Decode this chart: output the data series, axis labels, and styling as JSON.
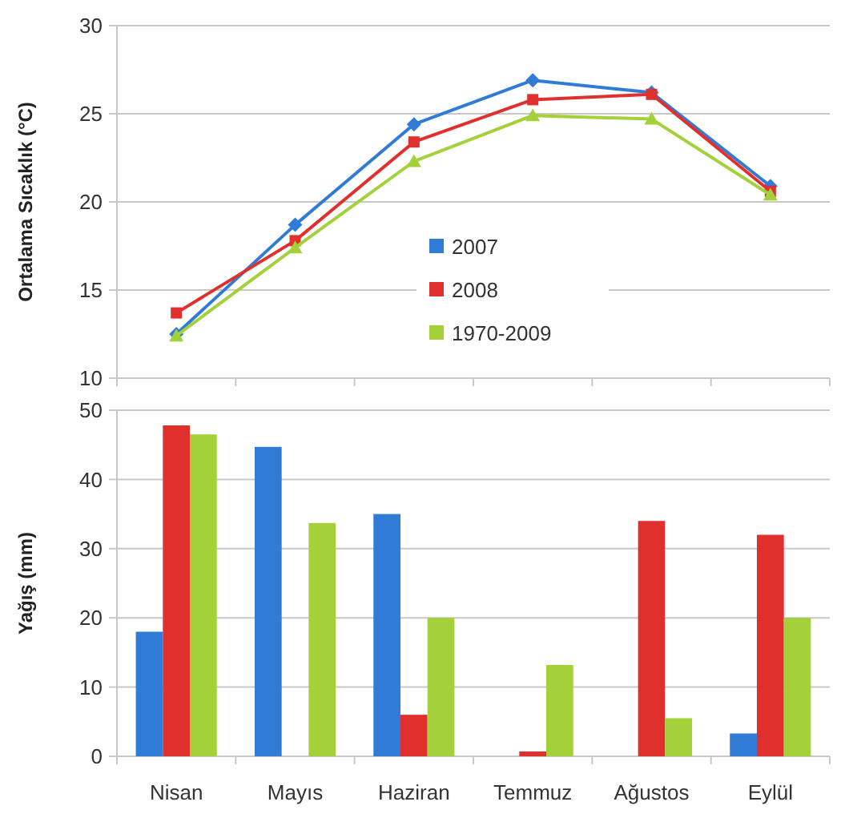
{
  "chart_data": [
    {
      "type": "line",
      "ylabel": "Ortalama Sıcaklık (°C)",
      "categories": [
        null,
        null,
        null,
        null,
        null,
        null
      ],
      "ylim": [
        10,
        30
      ],
      "yticks": [
        10,
        15,
        20,
        25,
        30
      ],
      "grid": "y",
      "legend": "bottom",
      "tick_labels": "y",
      "series": [
        {
          "name": "2007",
          "color": "#2f7bd6",
          "marker": "diamond",
          "values": [
            12.5,
            18.7,
            24.4,
            26.9,
            26.2,
            20.9
          ]
        },
        {
          "name": "2008",
          "color": "#e0302e",
          "marker": "square",
          "values": [
            13.7,
            17.8,
            23.4,
            25.8,
            26.1,
            20.6
          ]
        },
        {
          "name": "1970-2009",
          "color": "#a4d03a",
          "marker": "triangle",
          "values": [
            12.4,
            17.4,
            22.3,
            24.9,
            24.7,
            20.4
          ]
        }
      ]
    },
    {
      "type": "bar",
      "ylabel": "Yağış (mm)",
      "categories": [
        "Nisan",
        "Mayıs",
        "Haziran",
        "Temmuz",
        "Ağustos",
        "Eylül"
      ],
      "ylim": [
        0,
        50
      ],
      "yticks": [
        0,
        10,
        20,
        30,
        40,
        50
      ],
      "grid": "y",
      "series": [
        {
          "color": "#2f7bd6",
          "values": [
            18,
            44.7,
            35,
            0,
            0,
            3.3
          ]
        },
        {
          "color": "#e0302e",
          "values": [
            47.8,
            0,
            6,
            0.7,
            34,
            32
          ]
        },
        {
          "color": "#a4d03a",
          "values": [
            46.5,
            33.7,
            20,
            13.2,
            5.5,
            20
          ]
        }
      ]
    }
  ]
}
